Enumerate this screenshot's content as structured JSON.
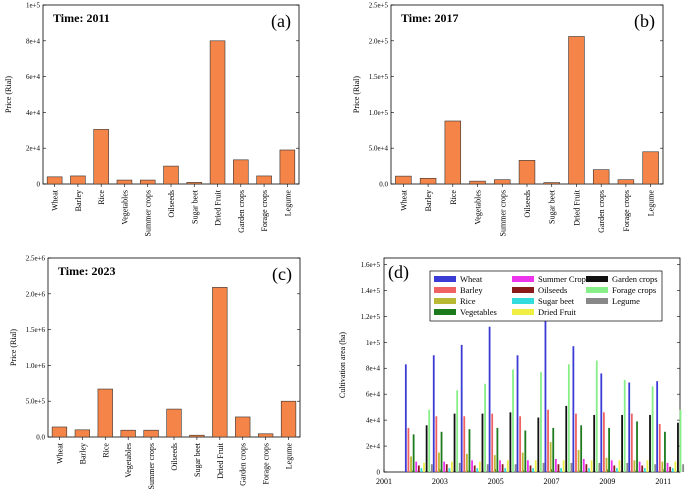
{
  "price_categories": [
    "Wheat",
    "Barley",
    "Rice",
    "Vegetables",
    "Summer crops",
    "Oilseeds",
    "Sugar beet",
    "Dried Fruit",
    "Garden crops",
    "Forage crops",
    "Legume"
  ],
  "chart_data": [
    {
      "type": "bar",
      "panel_label": "(a)",
      "title": "Time: 2011",
      "xlabel": "",
      "ylabel": "Price (Rial)",
      "yticks": [
        "0",
        "2e+4",
        "4e+4",
        "6e+4",
        "8e+4",
        "1e+5"
      ],
      "ylim": [
        0,
        100000
      ],
      "values": [
        4000,
        4500,
        30500,
        2200,
        2200,
        10000,
        900,
        80000,
        13500,
        4500,
        19000
      ],
      "bar_color": "#f58448"
    },
    {
      "type": "bar",
      "panel_label": "(b)",
      "title": "Time: 2017",
      "xlabel": "",
      "ylabel": "Price (Rial)",
      "yticks": [
        "0.0",
        "5.0e+4",
        "1.0e+5",
        "1.5e+5",
        "2.0e+5",
        "2.5e+5"
      ],
      "ylim": [
        0,
        250000
      ],
      "values": [
        11000,
        8000,
        88000,
        4000,
        6000,
        33000,
        2000,
        206000,
        20000,
        6000,
        45000
      ],
      "bar_color": "#f58448"
    },
    {
      "type": "bar",
      "panel_label": "(c)",
      "title": "Time: 2023",
      "xlabel": "",
      "ylabel": "Price (Rial)",
      "yticks": [
        "0.0",
        "5.0e+5",
        "1.0e+6",
        "1.5e+6",
        "2.0e+6",
        "2.5e+6"
      ],
      "ylim": [
        0,
        2500000
      ],
      "values": [
        140000,
        100000,
        670000,
        95000,
        95000,
        390000,
        25000,
        2090000,
        280000,
        45000,
        500000
      ],
      "bar_color": "#f58448"
    },
    {
      "type": "bar",
      "panel_label": "(d)",
      "title": "",
      "xlabel": "",
      "ylabel": "Cultivation area (ha)",
      "yticks": [
        "0",
        "2e+4",
        "4e+4",
        "6e+4",
        "8e+4",
        "1e+5",
        "1.2e+5",
        "1.4e+5",
        "1.6e+5"
      ],
      "ylim": [
        0,
        165000
      ],
      "xticks": [
        "2001",
        "2003",
        "2005",
        "2007",
        "2009",
        "2011"
      ],
      "xlim": [
        2001,
        2011.6
      ],
      "years": [
        2002,
        2003,
        2004,
        2005,
        2006,
        2007,
        2008,
        2009,
        2010,
        2011
      ],
      "series": [
        {
          "name": "Wheat",
          "color": "#3b3bd6",
          "values": [
            83000,
            90000,
            98000,
            112000,
            90000,
            117000,
            97000,
            76000,
            69000,
            70000
          ]
        },
        {
          "name": "Barley",
          "color": "#f06262",
          "values": [
            34000,
            43000,
            43000,
            45000,
            43000,
            48000,
            45000,
            46000,
            45000,
            37000
          ]
        },
        {
          "name": "Rice",
          "color": "#b9b933",
          "values": [
            12000,
            15000,
            14000,
            13000,
            15000,
            23000,
            17000,
            11000,
            9000,
            8000
          ]
        },
        {
          "name": "Vegetables",
          "color": "#1d7a1d",
          "values": [
            29000,
            31000,
            33000,
            34000,
            32000,
            34000,
            36000,
            34000,
            39000,
            31000
          ]
        },
        {
          "name": "Summer Crops",
          "color": "#ee33ee",
          "values": [
            8000,
            8000,
            9000,
            9000,
            9000,
            10000,
            10000,
            9000,
            8000,
            7000
          ]
        },
        {
          "name": "Oilseeds",
          "color": "#8b1a1a",
          "values": [
            5000,
            6000,
            5000,
            6000,
            5000,
            6000,
            6000,
            5000,
            5000,
            4000
          ]
        },
        {
          "name": "Sugar beet",
          "color": "#33dddd",
          "values": [
            3000,
            3000,
            3000,
            3000,
            3000,
            3000,
            3000,
            3000,
            3000,
            3000
          ]
        },
        {
          "name": "Dried Fruit",
          "color": "#eeee44",
          "values": [
            7000,
            8000,
            8000,
            9000,
            9000,
            9000,
            9000,
            9000,
            9000,
            8000
          ]
        },
        {
          "name": "Garden crops",
          "color": "#111111",
          "values": [
            36000,
            45000,
            45000,
            46000,
            42000,
            51000,
            44000,
            44000,
            44000,
            38000
          ]
        },
        {
          "name": "Forage crops",
          "color": "#88ee88",
          "values": [
            48000,
            63000,
            68000,
            79000,
            77000,
            83000,
            86000,
            71000,
            66000,
            48000
          ]
        },
        {
          "name": "Legume",
          "color": "#888888",
          "values": [
            6000,
            7000,
            6000,
            6000,
            7000,
            7000,
            7000,
            7000,
            6000,
            6000
          ]
        }
      ]
    }
  ]
}
